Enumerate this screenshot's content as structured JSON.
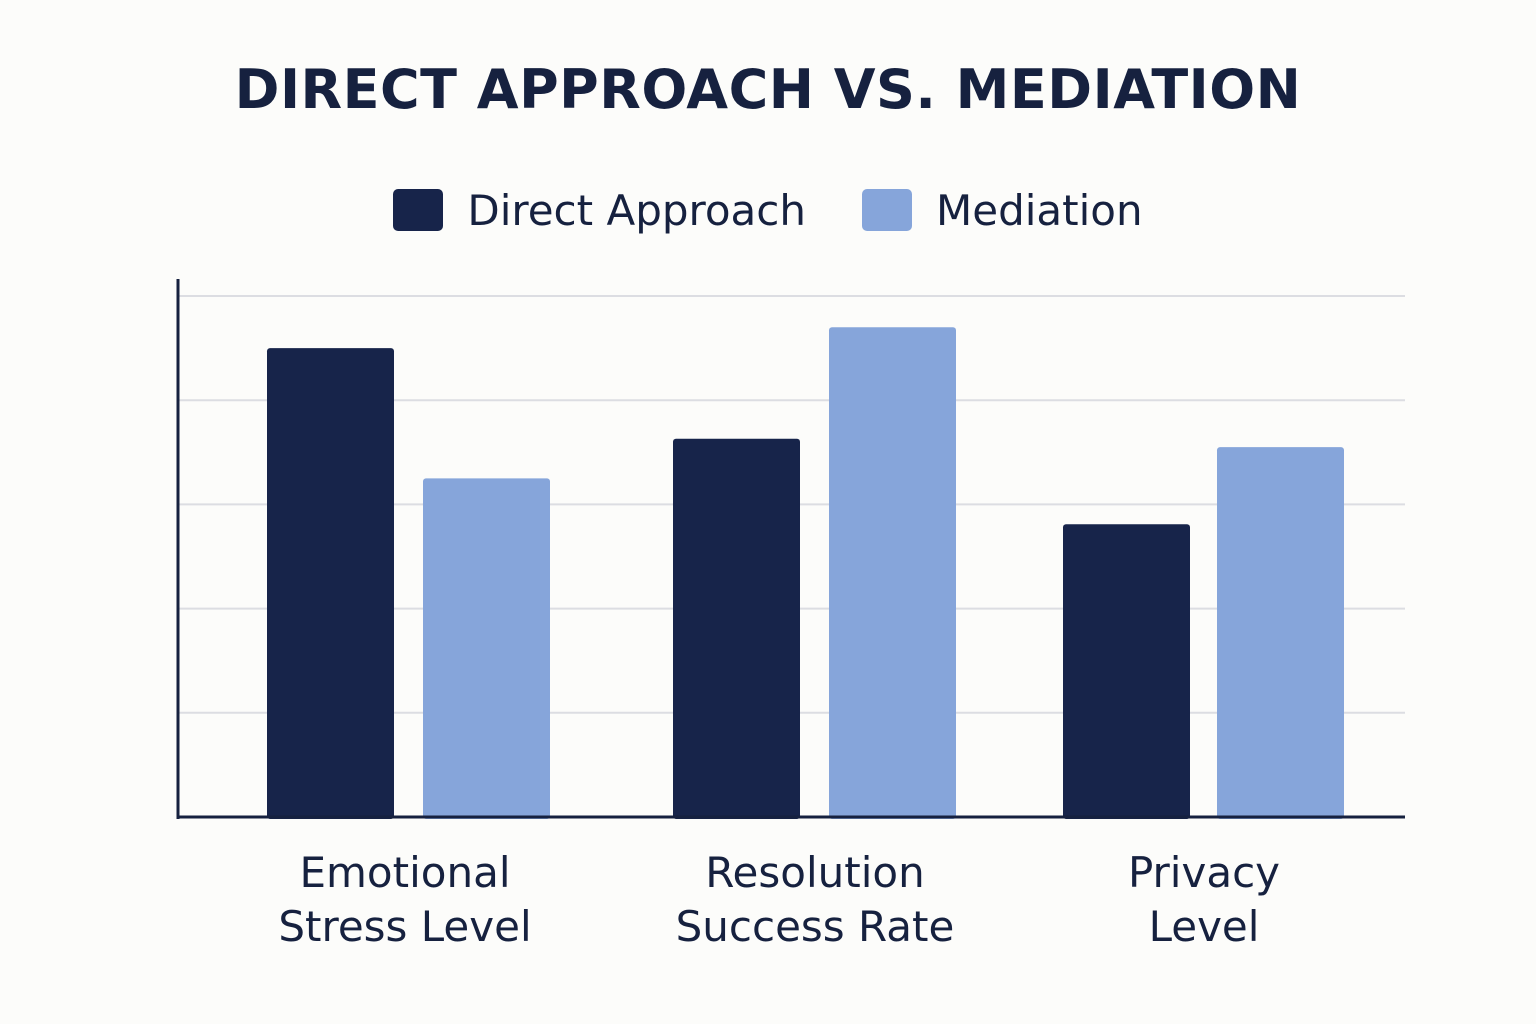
{
  "chart_data": {
    "type": "bar",
    "title": "DIRECT APPROACH VS. MEDIATION",
    "categories": [
      [
        "Emotional",
        "Stress Level"
      ],
      [
        "Resolution",
        "Success Rate"
      ],
      [
        "Privacy",
        "Level"
      ]
    ],
    "series": [
      {
        "name": "Direct Approach",
        "color": "#17244a",
        "values": [
          4.5,
          3.63,
          2.81
        ]
      },
      {
        "name": "Mediation",
        "color": "#86a5da",
        "values": [
          3.25,
          4.7,
          3.55
        ]
      }
    ],
    "ylim": [
      0,
      5
    ],
    "y_ticks_labeled": false,
    "grid": true,
    "legend_position": "top-center",
    "xlabel": "",
    "ylabel": ""
  }
}
